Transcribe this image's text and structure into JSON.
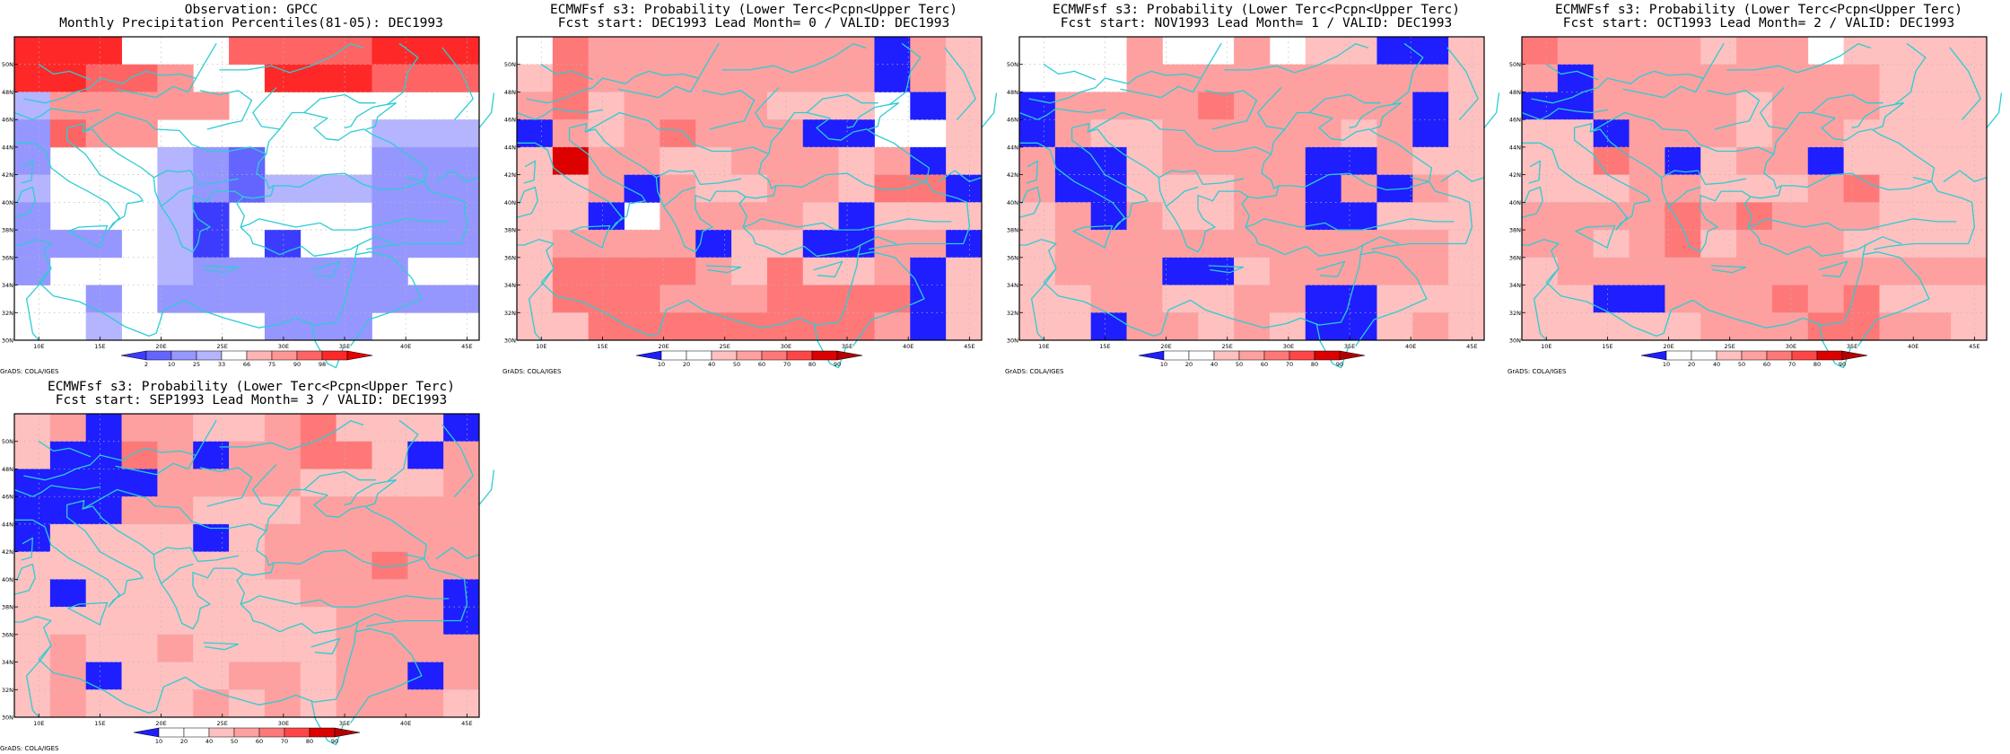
{
  "map_extent": {
    "lon": [
      8,
      46
    ],
    "lat": [
      30,
      52
    ]
  },
  "lat_labels": [
    "30N",
    "32N",
    "34N",
    "36N",
    "38N",
    "40N",
    "42N",
    "44N",
    "46N",
    "48N",
    "50N"
  ],
  "lon_labels": [
    "10E",
    "15E",
    "20E",
    "25E",
    "30E",
    "35E",
    "40E",
    "45E"
  ],
  "credit": "GrADS: COLA/IGES",
  "colors": {
    "obs": [
      "#3c3cff",
      "#6464ff",
      "#9696ff",
      "#b4b4ff",
      "#ffffff",
      "#ffb4b4",
      "#ff9696",
      "#ff6464",
      "#ff2828",
      "#e60000"
    ],
    "prob": [
      "#1e1eff",
      "#ffffff",
      "#ffffff",
      "#ffc0c0",
      "#ffa0a0",
      "#ff7878",
      "#ff4646",
      "#dc0000",
      "#b40000"
    ],
    "coast": "#2ccdd3"
  },
  "obs_levels": [
    "2",
    "10",
    "25",
    "33",
    "66",
    "75",
    "90",
    "98"
  ],
  "prob_levels": [
    "10",
    "20",
    "40",
    "50",
    "60",
    "70",
    "80",
    "90"
  ],
  "panels": [
    {
      "title1": "Observation: GPCC",
      "title2": "Monthly Precipitation Percentiles(81-05): DEC1993",
      "scale": "obs",
      "field": "obs",
      "rows": [
        "8884447777888",
        "8877644888777",
        "3666664444444",
        "2766444444333",
        "2444321444222",
        "3444321333222",
        "2444304444222",
        "2224304044222",
        "2444322222244",
        "4424222222222",
        "4434444222444"
      ]
    },
    {
      "title1": "ECMWFsf s3: Probability (Lower Terc<Pcpn<Upper Terc)",
      "title2": "Fcst start: DEC1993  Lead Month= 0 / VALID: DEC1993",
      "scale": "prob",
      "field": "prob",
      "rows": [
        "1544444444043",
        "3544444444043",
        "4534444333103",
        "0434544400113",
        "3744334443403",
        "3340433443550",
        "3301444430333",
        "3444403300440",
        "3555543533403",
        "3555444555503",
        "3355555555403"
      ]
    },
    {
      "title1": "ECMWFsf s3: Probability (Lower Terc<Pcpn<Upper Terc)",
      "title2": "Fcst start: NOV1993  Lead Month= 1 / VALID: DEC1993",
      "scale": "prob",
      "field": "prob",
      "rows": [
        "1114114133003",
        "1114444444443",
        "0444454444403",
        "0433444443403",
        "4003444400433",
        "4003334404043",
        "3404334400333",
        "3444444444443",
        "3444003444443",
        "3344334400333",
        "3304434300343"
      ]
    },
    {
      "title1": "ECMWFsf s3: Probability (Lower Terc<Pcpn<Upper Terc)",
      "title2": "Fcst start: OCT1993  Lead Month= 2 / VALID: DEC1993",
      "scale": "prob",
      "field": "prob",
      "rows": [
        "5444434413333",
        "4044444444333",
        "0044443444333",
        "3304443443333",
        "3354034403333",
        "3334433345333",
        "4444545444333",
        "4434534443333",
        "3444444444444",
        "3300444545333",
        "3333344455443"
      ]
    },
    {
      "title1": "ECMWFsf s3: Probability (Lower Terc<Pcpn<Upper Terc)",
      "title2": "Fcst start: SEP1993  Lead Month= 3 / VALID: DEC1993",
      "scale": "prob",
      "field": "prob",
      "rows": [
        "3404433453330",
        "3005404455304",
        "0000444433334",
        "0004433344444",
        "0333303444444",
        "3333333444544",
        "3033333344440",
        "3333333334440",
        "3433433334444",
        "3403334434404",
        "3433343434443"
      ]
    }
  ]
}
